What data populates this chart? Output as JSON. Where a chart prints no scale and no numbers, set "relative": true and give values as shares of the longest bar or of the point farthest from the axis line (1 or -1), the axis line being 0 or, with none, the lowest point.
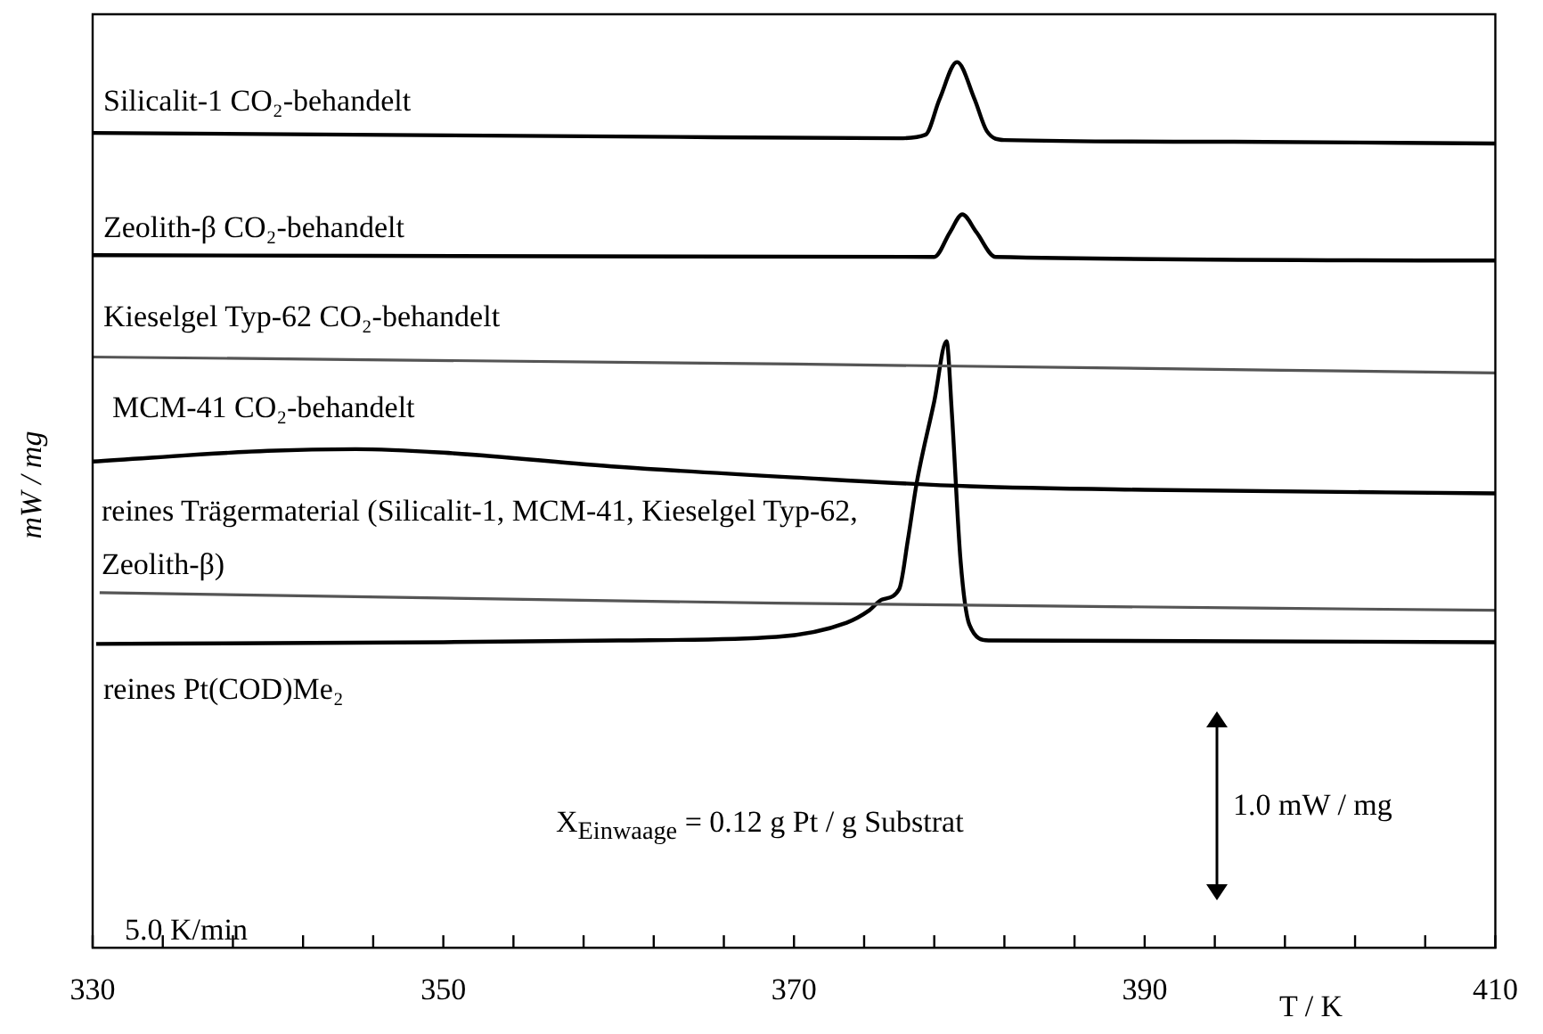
{
  "chart_data": {
    "type": "line",
    "xlabel": "T / K",
    "ylabel": "mW / mg",
    "relative": true,
    "legend": false,
    "grid": false,
    "marker": "none",
    "line_style": "solid",
    "xlim": [
      330,
      410
    ],
    "xticks": [
      330,
      {
        "value": 334,
        "label": null
      },
      {
        "value": 338,
        "label": null
      },
      {
        "value": 342,
        "label": null
      },
      {
        "value": 346,
        "label": null
      },
      350,
      {
        "value": 354,
        "label": null
      },
      {
        "value": 358,
        "label": null
      },
      {
        "value": 362,
        "label": null
      },
      {
        "value": 366,
        "label": null
      },
      370,
      {
        "value": 374,
        "label": null
      },
      {
        "value": 378,
        "label": null
      },
      {
        "value": 382,
        "label": null
      },
      {
        "value": 386,
        "label": null
      },
      390,
      {
        "value": 394,
        "label": null
      },
      {
        "value": 398,
        "label": null
      },
      {
        "value": 402,
        "label": null
      },
      {
        "value": 406,
        "label": null
      },
      410
    ],
    "series": [
      {
        "name": "Silicalit-1 CO₂-behandelt",
        "color": "#000000",
        "x": [
          330,
          360,
          376,
          377.5,
          378.3,
          379.3,
          380.3,
          381,
          382,
          395,
          410
        ],
        "values": [
          0.92,
          0.916,
          0.914,
          0.918,
          0.958,
          1,
          0.958,
          0.922,
          0.912,
          0.91,
          0.908
        ]
      },
      {
        "name": "Zeolith-β CO₂-behandelt",
        "color": "#000000",
        "x": [
          330,
          378,
          378.9,
          379.6,
          380.4,
          381.5,
          410
        ],
        "values": [
          0.782,
          0.78,
          0.808,
          0.828,
          0.808,
          0.78,
          0.776
        ]
      },
      {
        "name": "Kieselgel Typ-62 CO₂-behandelt",
        "color": "#555555",
        "x": [
          330,
          370,
          410
        ],
        "values": [
          0.667,
          0.659,
          0.649
        ]
      },
      {
        "name": "MCM-41 CO₂-behandelt",
        "color": "#000000",
        "x": [
          330,
          340,
          345,
          350,
          360,
          370,
          380,
          390,
          410
        ],
        "values": [
          0.549,
          0.561,
          0.563,
          0.559,
          0.543,
          0.531,
          0.521,
          0.517,
          0.513
        ]
      },
      {
        "name": "reines Trägermaterial (Silicalit-1, MCM-41, Kieselgel Typ-62, Zeolith-β)",
        "color": "#555555",
        "x": [
          330.4,
          369,
          410
        ],
        "values": [
          0.401,
          0.389,
          0.381
        ]
      },
      {
        "name": "reines Pt(COD)Me₂",
        "color": "#000000",
        "x": [
          330.2,
          350,
          360,
          369,
          373,
          374.3,
          375,
          376,
          376.5,
          377,
          378,
          378.7,
          379,
          379.5,
          380,
          381.1,
          410
        ],
        "values": [
          0.343,
          0.345,
          0.347,
          0.351,
          0.367,
          0.381,
          0.393,
          0.405,
          0.461,
          0.525,
          0.617,
          0.685,
          0.605,
          0.437,
          0.365,
          0.347,
          0.345
        ]
      }
    ],
    "annotations": [
      "X$_{Einwaage}$ = 0.12 g Pt / g Substrat",
      "5.0 K/min",
      "1.0 mW / mg"
    ]
  }
}
